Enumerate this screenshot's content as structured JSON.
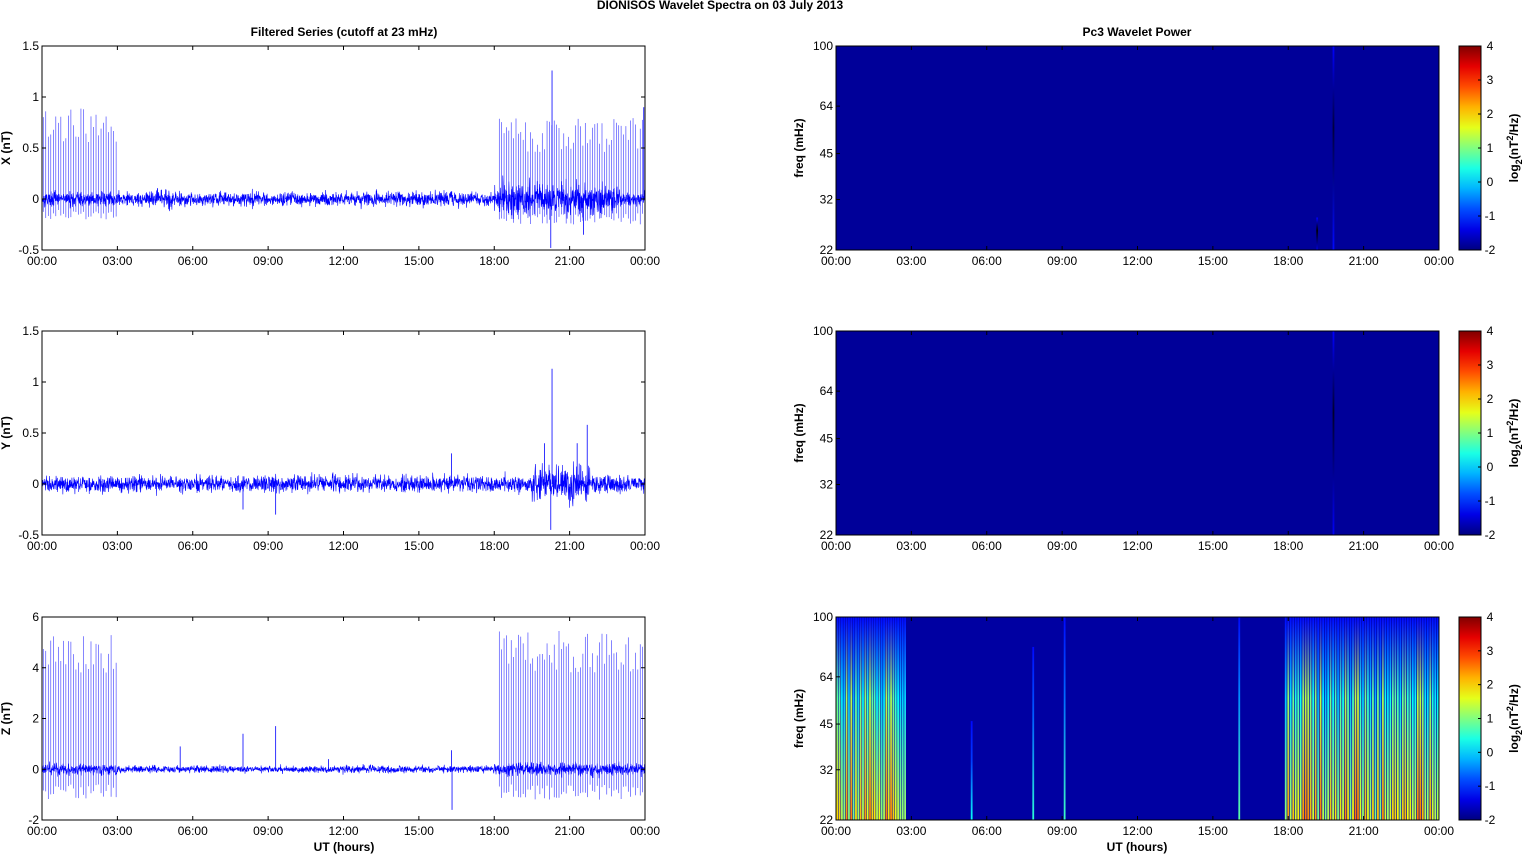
{
  "figure": {
    "title": "DIONISOS Wavelet Spectra on 03 July      2013",
    "left_title": "Filtered Series (cutoff at 23 mHz)",
    "right_title": "Pc3 Wavelet Power",
    "xlabel": "UT (hours)",
    "freq_label": "freq (mHz)",
    "colorbar_label_prefix": "log",
    "colorbar_label_base": "2",
    "colorbar_label_open": "(nT",
    "colorbar_label_exp": "2",
    "colorbar_label_close": "/Hz)"
  },
  "colors": {
    "trace": "#0000ff",
    "background": "#00008f",
    "axis": "#000000"
  },
  "chart_data": [
    {
      "type": "line",
      "name": "filtered-x",
      "ylabel": "X (nT)",
      "ylim": [
        -0.5,
        1.5
      ],
      "yticks": [
        "-0.5",
        "0",
        "0.5",
        "1",
        "1.5"
      ],
      "ytick_values": [
        -0.5,
        0,
        0.5,
        1,
        1.5
      ],
      "xlim": [
        "00:00",
        "24:00"
      ],
      "xticks": [
        "00:00",
        "03:00",
        "06:00",
        "09:00",
        "12:00",
        "15:00",
        "18:00",
        "21:00",
        "00:00"
      ],
      "baseline_noise": 0.06,
      "noise_bumps": [
        {
          "from": 18,
          "to": 23,
          "scale": 2.2
        },
        {
          "from": 4.5,
          "to": 5.2,
          "scale": 1.4
        }
      ],
      "spike_bursts": [
        {
          "from": 0.05,
          "to": 2.95,
          "count": 30,
          "min": 0.55,
          "max": 0.9,
          "neg": -0.2
        },
        {
          "from": 18.2,
          "to": 24,
          "count": 62,
          "min": 0.45,
          "max": 0.8,
          "neg": -0.25
        }
      ],
      "spikes": [
        {
          "t": 20.3,
          "v": 1.26
        },
        {
          "t": 20.25,
          "v": -0.48
        },
        {
          "t": 21.55,
          "v": -0.35
        },
        {
          "t": 23.95,
          "v": 0.9
        }
      ]
    },
    {
      "type": "line",
      "name": "filtered-y",
      "ylabel": "Y (nT)",
      "ylim": [
        -0.5,
        1.5
      ],
      "yticks": [
        "-0.5",
        "0",
        "0.5",
        "1",
        "1.5"
      ],
      "ytick_values": [
        -0.5,
        0,
        0.5,
        1,
        1.5
      ],
      "xlim": [
        "00:00",
        "24:00"
      ],
      "xticks": [
        "00:00",
        "03:00",
        "06:00",
        "09:00",
        "12:00",
        "15:00",
        "18:00",
        "21:00",
        "00:00"
      ],
      "baseline_noise": 0.07,
      "noise_bumps": [
        {
          "from": 19.5,
          "to": 21.8,
          "scale": 2.2
        }
      ],
      "spike_bursts": [],
      "spikes": [
        {
          "t": 20.3,
          "v": 1.13
        },
        {
          "t": 20.25,
          "v": -0.45
        },
        {
          "t": 21.7,
          "v": 0.58
        },
        {
          "t": 21.3,
          "v": 0.4
        },
        {
          "t": 20.0,
          "v": 0.4
        },
        {
          "t": 16.3,
          "v": 0.3
        },
        {
          "t": 8.0,
          "v": -0.25
        },
        {
          "t": 9.3,
          "v": -0.3
        }
      ]
    },
    {
      "type": "line",
      "name": "filtered-z",
      "ylabel": "Z (nT)",
      "ylim": [
        -2,
        6
      ],
      "yticks": [
        "-2",
        "0",
        "2",
        "4",
        "6"
      ],
      "ytick_values": [
        -2,
        0,
        2,
        4,
        6
      ],
      "xlim": [
        "00:00",
        "24:00"
      ],
      "xticks": [
        "00:00",
        "03:00",
        "06:00",
        "09:00",
        "12:00",
        "15:00",
        "18:00",
        "21:00",
        "00:00"
      ],
      "baseline_noise": 0.12,
      "noise_bumps": [
        {
          "from": 18,
          "to": 24,
          "scale": 1.8
        },
        {
          "from": 0,
          "to": 3,
          "scale": 1.6
        }
      ],
      "spike_bursts": [
        {
          "from": 0.05,
          "to": 2.95,
          "count": 30,
          "min": 3.8,
          "max": 5.3,
          "neg": -1.2
        },
        {
          "from": 18.2,
          "to": 24,
          "count": 62,
          "min": 3.8,
          "max": 5.5,
          "neg": -1.2
        }
      ],
      "spikes": [
        {
          "t": 5.5,
          "v": 0.9
        },
        {
          "t": 8.0,
          "v": 1.4
        },
        {
          "t": 9.3,
          "v": 1.7
        },
        {
          "t": 11.4,
          "v": 0.4
        },
        {
          "t": 16.3,
          "v": 0.75
        },
        {
          "t": 16.32,
          "v": -1.6
        }
      ]
    },
    {
      "type": "heatmap",
      "name": "wavelet-x",
      "ylabel": "freq (mHz)",
      "yscale": "log",
      "ylim": [
        22,
        100
      ],
      "yticks": [
        "100",
        "64",
        "45",
        "32",
        "22"
      ],
      "ytick_values": [
        100,
        64,
        45,
        32,
        22
      ],
      "xticks": [
        "00:00",
        "03:00",
        "06:00",
        "09:00",
        "12:00",
        "15:00",
        "18:00",
        "21:00",
        "00:00"
      ],
      "clim": [
        -2,
        4
      ],
      "colorbar_ticks": [
        "4",
        "3",
        "2",
        "1",
        "0",
        "-1",
        "-2"
      ],
      "colorbar_tick_values": [
        4,
        3,
        2,
        1,
        0,
        -1,
        -2
      ],
      "background_level": -1.85,
      "bursts": [
        {
          "from": 19.75,
          "to": 19.85,
          "count": 1,
          "level": -1.2,
          "fmax": 100
        },
        {
          "from": 19.1,
          "to": 19.2,
          "count": 1,
          "level": -1.5,
          "fmax": 28
        }
      ]
    },
    {
      "type": "heatmap",
      "name": "wavelet-y",
      "ylabel": "freq (mHz)",
      "yscale": "log",
      "ylim": [
        22,
        100
      ],
      "yticks": [
        "100",
        "64",
        "45",
        "32",
        "22"
      ],
      "ytick_values": [
        100,
        64,
        45,
        32,
        22
      ],
      "xticks": [
        "00:00",
        "03:00",
        "06:00",
        "09:00",
        "12:00",
        "15:00",
        "18:00",
        "21:00",
        "00:00"
      ],
      "clim": [
        -2,
        4
      ],
      "colorbar_ticks": [
        "4",
        "3",
        "2",
        "1",
        "0",
        "-1",
        "-2"
      ],
      "colorbar_tick_values": [
        4,
        3,
        2,
        1,
        0,
        -1,
        -2
      ],
      "background_level": -1.85,
      "bursts": [
        {
          "from": 19.75,
          "to": 19.85,
          "count": 1,
          "level": -1.3,
          "fmax": 100
        }
      ]
    },
    {
      "type": "heatmap",
      "name": "wavelet-z",
      "ylabel": "freq (mHz)",
      "yscale": "log",
      "ylim": [
        22,
        100
      ],
      "yticks": [
        "100",
        "64",
        "45",
        "32",
        "22"
      ],
      "ytick_values": [
        100,
        64,
        45,
        32,
        22
      ],
      "xticks": [
        "00:00",
        "03:00",
        "06:00",
        "09:00",
        "12:00",
        "15:00",
        "18:00",
        "21:00",
        "00:00"
      ],
      "clim": [
        -2,
        4
      ],
      "colorbar_ticks": [
        "4",
        "3",
        "2",
        "1",
        "0",
        "-1",
        "-2"
      ],
      "colorbar_tick_values": [
        4,
        3,
        2,
        1,
        0,
        -1,
        -2
      ],
      "background_level": -1.8,
      "bursts": [
        {
          "from": 0.05,
          "to": 2.75,
          "count": 30,
          "level": 2.2,
          "fmax": 100
        },
        {
          "from": 17.9,
          "to": 23.95,
          "count": 62,
          "level": 2.2,
          "fmax": 100
        },
        {
          "from": 5.35,
          "to": 5.45,
          "count": 1,
          "level": 0.3,
          "fmax": 46
        },
        {
          "from": 7.8,
          "to": 7.9,
          "count": 1,
          "level": 0.5,
          "fmax": 80
        },
        {
          "from": 9.05,
          "to": 9.15,
          "count": 1,
          "level": 0.6,
          "fmax": 100
        },
        {
          "from": 16.0,
          "to": 16.1,
          "count": 1,
          "level": 0.8,
          "fmax": 100
        }
      ]
    }
  ]
}
